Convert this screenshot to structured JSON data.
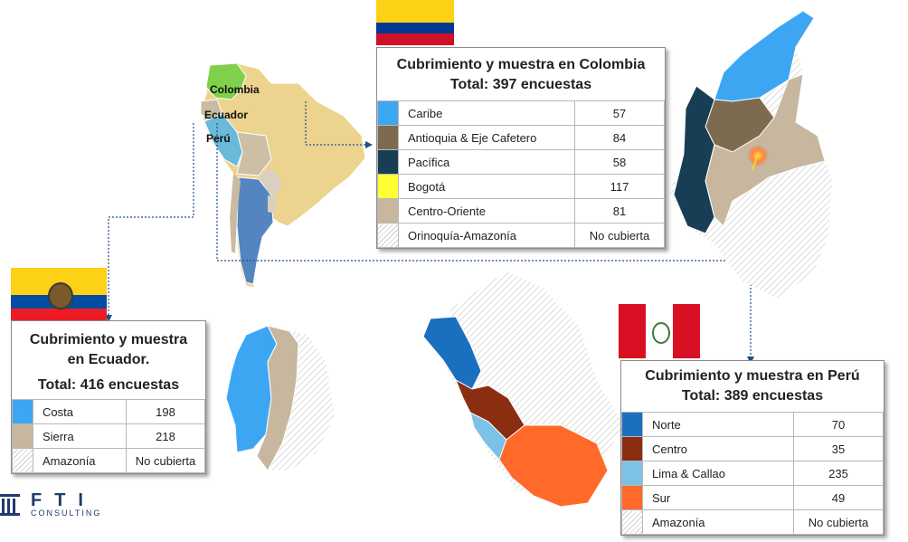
{
  "colombia": {
    "title": "Cubrimiento y muestra en Colombia",
    "total": "Total: 397 encuestas",
    "rows": [
      {
        "label": "Caribe",
        "value": "57",
        "color": "#3da6f3"
      },
      {
        "label": "Antioquia & Eje Cafetero",
        "value": "84",
        "color": "#7d6b4f"
      },
      {
        "label": "Pacífica",
        "value": "58",
        "color": "#173e55"
      },
      {
        "label": "Bogotá",
        "value": "117",
        "color": "#ffff33"
      },
      {
        "label": "Centro-Oriente",
        "value": "81",
        "color": "#c6b79e"
      },
      {
        "label": "Orinoquía-Amazonía",
        "value": "No cubierta",
        "color": "hatch"
      }
    ]
  },
  "ecuador": {
    "title_line1": "Cubrimiento y muestra",
    "title_line2": "en Ecuador.",
    "total": "Total: 416 encuestas",
    "rows": [
      {
        "label": "Costa",
        "value": "198",
        "color": "#3da6f3"
      },
      {
        "label": "Sierra",
        "value": "218",
        "color": "#c6b79e"
      },
      {
        "label": "Amazonía",
        "value": "No cubierta",
        "color": "hatch"
      }
    ]
  },
  "peru": {
    "title": "Cubrimiento y muestra en Perú",
    "total": "Total: 389 encuestas",
    "rows": [
      {
        "label": "Norte",
        "value": "70",
        "color": "#1a6fbf"
      },
      {
        "label": "Centro",
        "value": "35",
        "color": "#8a2e12"
      },
      {
        "label": "Lima & Callao",
        "value": "235",
        "color": "#7cc2e6"
      },
      {
        "label": "Sur",
        "value": "49",
        "color": "#ff6a2a"
      },
      {
        "label": "Amazonía",
        "value": "No cubierta",
        "color": "hatch"
      }
    ]
  },
  "map_labels": {
    "colombia": "Colombia",
    "ecuador": "Ecuador",
    "peru": "Perú"
  },
  "logo": {
    "text": "FTI",
    "sub": "CONSULTING"
  }
}
